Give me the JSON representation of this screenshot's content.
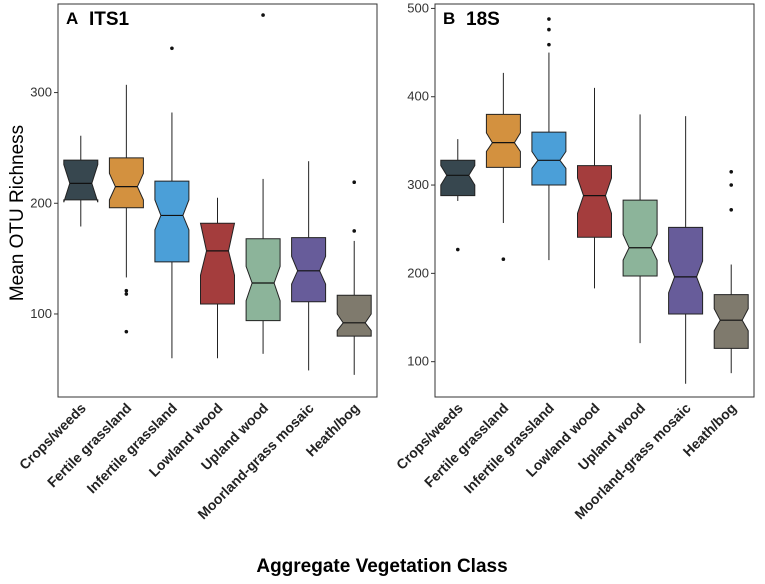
{
  "figure": {
    "ylabel": "Mean OTU Richness",
    "xlabel": "Aggregate Vegetation Class"
  },
  "colors": {
    "crops": "#37474f",
    "fertile": "#d3913f",
    "infertile": "#4b9fd8",
    "lowland": "#a43d3d",
    "upland": "#8cb49a",
    "moorland": "#675c9a",
    "heath": "#7f7a6d"
  },
  "chart_data": [
    {
      "type": "box",
      "panel_letter": "A",
      "title": "ITS1",
      "xlabel": "Aggregate Vegetation Class",
      "ylabel": "Mean OTU Richness",
      "ylim": [
        25,
        380
      ],
      "yticks": [
        100,
        200,
        300
      ],
      "categories": [
        "Crops/weeds",
        "Fertile grassland",
        "Infertile grassland",
        "Lowland wood",
        "Upland wood",
        "Moorland-grass mosaic",
        "Heath/bog"
      ],
      "boxes": [
        {
          "category": "Crops/weeds",
          "color": "crops",
          "min": 179,
          "q1": 203,
          "median": 218,
          "q3": 239,
          "max": 261,
          "notch_low": 201,
          "notch_high": 235,
          "outliers": []
        },
        {
          "category": "Fertile grassland",
          "color": "fertile",
          "min": 133,
          "q1": 196,
          "median": 215,
          "q3": 241,
          "max": 307,
          "notch_low": 203,
          "notch_high": 227,
          "outliers": [
            121,
            118,
            84
          ]
        },
        {
          "category": "Infertile grassland",
          "color": "infertile",
          "min": 60,
          "q1": 147,
          "median": 189,
          "q3": 220,
          "max": 282,
          "notch_low": 176,
          "notch_high": 203,
          "outliers": [
            340
          ]
        },
        {
          "category": "Lowland wood",
          "color": "lowland",
          "min": 60,
          "q1": 109,
          "median": 157,
          "q3": 182,
          "max": 205,
          "notch_low": 135,
          "notch_high": 182,
          "outliers": []
        },
        {
          "category": "Upland wood",
          "color": "upland",
          "min": 64,
          "q1": 94,
          "median": 128,
          "q3": 168,
          "max": 222,
          "notch_low": 112,
          "notch_high": 143,
          "outliers": [
            370
          ]
        },
        {
          "category": "Moorland-grass mosaic",
          "color": "moorland",
          "min": 49,
          "q1": 111,
          "median": 139,
          "q3": 169,
          "max": 238,
          "notch_low": 127,
          "notch_high": 152,
          "outliers": []
        },
        {
          "category": "Heath/bog",
          "color": "heath",
          "min": 45,
          "q1": 80,
          "median": 92,
          "q3": 117,
          "max": 166,
          "notch_low": 85,
          "notch_high": 100,
          "outliers": [
            219,
            175
          ]
        }
      ]
    },
    {
      "type": "box",
      "panel_letter": "B",
      "title": "18S",
      "xlabel": "Aggregate Vegetation Class",
      "ylabel": "Mean OTU Richness",
      "ylim": [
        60,
        505
      ],
      "yticks": [
        100,
        200,
        300,
        400,
        500
      ],
      "categories": [
        "Crops/weeds",
        "Fertile grassland",
        "Infertile grassland",
        "Lowland wood",
        "Upland wood",
        "Moorland-grass mosaic",
        "Heath/bog"
      ],
      "boxes": [
        {
          "category": "Crops/weeds",
          "color": "crops",
          "min": 282,
          "q1": 288,
          "median": 311,
          "q3": 328,
          "max": 352,
          "notch_low": 300,
          "notch_high": 322,
          "outliers": [
            227
          ]
        },
        {
          "category": "Fertile grassland",
          "color": "fertile",
          "min": 257,
          "q1": 320,
          "median": 348,
          "q3": 380,
          "max": 427,
          "notch_low": 338,
          "notch_high": 359,
          "outliers": [
            216
          ]
        },
        {
          "category": "Infertile grassland",
          "color": "infertile",
          "min": 215,
          "q1": 300,
          "median": 328,
          "q3": 360,
          "max": 450,
          "notch_low": 319,
          "notch_high": 338,
          "outliers": [
            488,
            476,
            459
          ]
        },
        {
          "category": "Lowland wood",
          "color": "lowland",
          "min": 183,
          "q1": 241,
          "median": 288,
          "q3": 322,
          "max": 410,
          "notch_low": 268,
          "notch_high": 308,
          "outliers": []
        },
        {
          "category": "Upland wood",
          "color": "upland",
          "min": 121,
          "q1": 197,
          "median": 229,
          "q3": 283,
          "max": 380,
          "notch_low": 215,
          "notch_high": 244,
          "outliers": []
        },
        {
          "category": "Moorland-grass mosaic",
          "color": "moorland",
          "min": 75,
          "q1": 154,
          "median": 196,
          "q3": 252,
          "max": 378,
          "notch_low": 178,
          "notch_high": 214,
          "outliers": []
        },
        {
          "category": "Heath/bog",
          "color": "heath",
          "min": 87,
          "q1": 115,
          "median": 147,
          "q3": 176,
          "max": 210,
          "notch_low": 135,
          "notch_high": 160,
          "outliers": [
            315,
            300,
            272
          ]
        }
      ]
    }
  ]
}
